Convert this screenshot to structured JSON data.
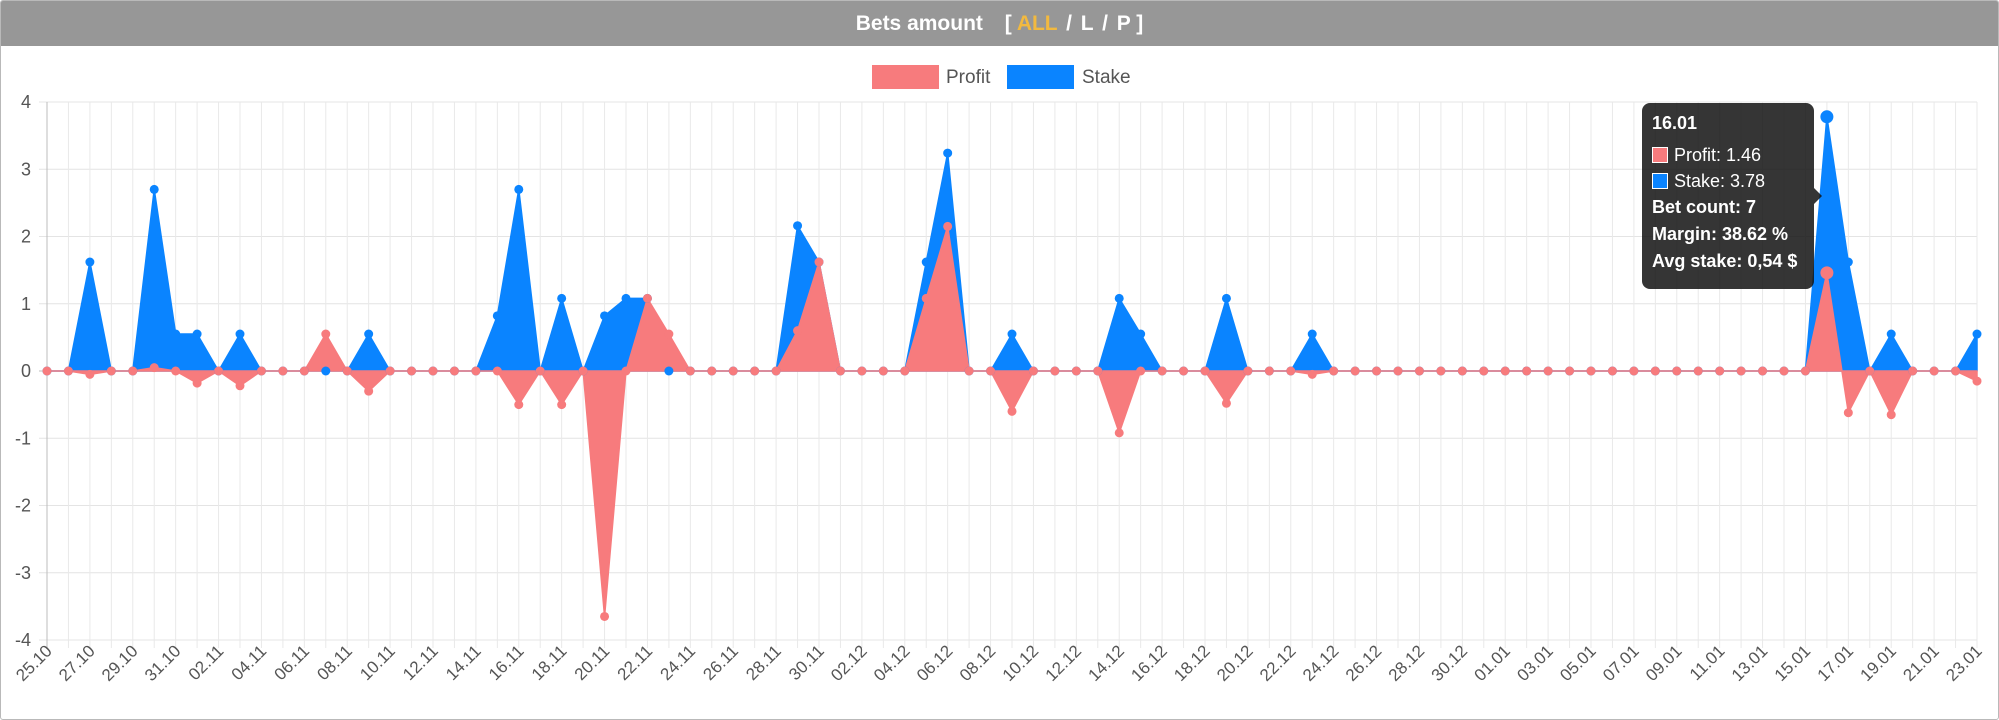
{
  "header": {
    "title": "Bets amount",
    "bracket_open": "[",
    "bracket_close": "]",
    "tabs": [
      "ALL",
      "L",
      "P"
    ],
    "separator": "/",
    "active_tab": "ALL"
  },
  "colors": {
    "profit": "#f77b7d",
    "stake": "#0a84ff",
    "header_bg": "#979797",
    "active_tab": "#f2b93f"
  },
  "tooltip": {
    "title": "16.01",
    "profit_line": "Profit: 1.46",
    "stake_line": "Stake: 3.78",
    "bet_count": "Bet count: 7",
    "margin": "Margin: 38.62 %",
    "avg_stake": "Avg stake: 0,54 $"
  },
  "chart_data": {
    "type": "area",
    "legend": {
      "position": "top",
      "entries": [
        "Profit",
        "Stake"
      ]
    },
    "ylim": [
      -4,
      4
    ],
    "yticks": [
      4,
      3,
      2,
      1,
      0,
      -1,
      -2,
      -3,
      -4
    ],
    "grid": true,
    "x": [
      "25.10",
      "26.10",
      "27.10",
      "28.10",
      "29.10",
      "30.10",
      "31.10",
      "01.11",
      "02.11",
      "03.11",
      "04.11",
      "05.11",
      "06.11",
      "07.11",
      "08.11",
      "09.11",
      "10.11",
      "11.11",
      "12.11",
      "13.11",
      "14.11",
      "15.11",
      "16.11",
      "17.11",
      "18.11",
      "19.11",
      "20.11",
      "21.11",
      "22.11",
      "23.11",
      "24.11",
      "25.11",
      "26.11",
      "27.11",
      "28.11",
      "29.11",
      "30.11",
      "01.12",
      "02.12",
      "03.12",
      "04.12",
      "05.12",
      "06.12",
      "07.12",
      "08.12",
      "09.12",
      "10.12",
      "11.12",
      "12.12",
      "13.12",
      "14.12",
      "15.12",
      "16.12",
      "17.12",
      "18.12",
      "19.12",
      "20.12",
      "21.12",
      "22.12",
      "23.12",
      "24.12",
      "25.12",
      "26.12",
      "27.12",
      "28.12",
      "29.12",
      "30.12",
      "31.12",
      "01.01",
      "02.01",
      "03.01",
      "04.01",
      "05.01",
      "06.01",
      "07.01",
      "08.01",
      "09.01",
      "10.01",
      "11.01",
      "12.01",
      "13.01",
      "14.01",
      "15.01",
      "16.01",
      "17.01",
      "18.01",
      "19.01",
      "20.01",
      "21.01",
      "22.01",
      "23.01"
    ],
    "xtick_labels": [
      "25.10",
      "27.10",
      "29.10",
      "31.10",
      "02.11",
      "04.11",
      "06.11",
      "08.11",
      "10.11",
      "12.11",
      "14.11",
      "16.11",
      "18.11",
      "20.11",
      "22.11",
      "24.11",
      "26.11",
      "28.11",
      "30.11",
      "02.12",
      "04.12",
      "06.12",
      "08.12",
      "10.12",
      "12.12",
      "14.12",
      "16.12",
      "18.12",
      "20.12",
      "22.12",
      "24.12",
      "26.12",
      "28.12",
      "30.12",
      "01.01",
      "03.01",
      "05.01",
      "07.01",
      "09.01",
      "11.01",
      "13.01",
      "15.01",
      "17.01",
      "19.01",
      "21.01",
      "23.01"
    ],
    "series": [
      {
        "name": "Profit",
        "values": [
          0,
          0,
          -0.05,
          0,
          0,
          0.05,
          0,
          -0.18,
          0,
          -0.22,
          0,
          0,
          0,
          0.55,
          0,
          -0.3,
          0,
          0,
          0,
          0,
          0,
          0,
          -0.5,
          0,
          -0.5,
          0,
          -3.65,
          0,
          1.08,
          0.55,
          0,
          0,
          0,
          0,
          0,
          0.6,
          1.62,
          0,
          0,
          0,
          0,
          1.08,
          2.15,
          0,
          0,
          -0.6,
          0,
          0,
          0,
          0,
          -0.92,
          0,
          0,
          0,
          0,
          -0.48,
          0,
          0,
          0,
          -0.05,
          0,
          0,
          0,
          0,
          0,
          0,
          0,
          0,
          0,
          0,
          0,
          0,
          0,
          0,
          0,
          0,
          0,
          0,
          0,
          0,
          0,
          0,
          0,
          1.46,
          -0.62,
          0,
          -0.65,
          0,
          0,
          0,
          -0.15
        ]
      },
      {
        "name": "Stake",
        "values": [
          0,
          0,
          1.62,
          0,
          0,
          2.7,
          0.55,
          0.55,
          0,
          0.55,
          0,
          0,
          0,
          0,
          0,
          0.55,
          0,
          0,
          0,
          0,
          0,
          0.82,
          2.7,
          0,
          1.08,
          0,
          0.82,
          1.08,
          1.08,
          0,
          0,
          0,
          0,
          0,
          0,
          2.16,
          1.62,
          0,
          0,
          0,
          0,
          1.62,
          3.24,
          0,
          0,
          0.55,
          0,
          0,
          0,
          0,
          1.08,
          0.55,
          0,
          0,
          0,
          1.08,
          0,
          0,
          0,
          0.55,
          0,
          0,
          0,
          0,
          0,
          0,
          0,
          0,
          0,
          0,
          0,
          0,
          0,
          0,
          0,
          0,
          0,
          0,
          0,
          0,
          0,
          0,
          0,
          3.78,
          1.62,
          0,
          0.55,
          0,
          0,
          0,
          0.55
        ]
      }
    ]
  }
}
